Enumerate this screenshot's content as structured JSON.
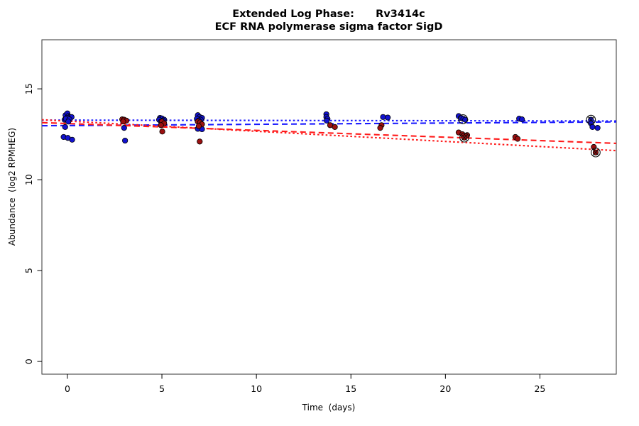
{
  "chart_data": {
    "type": "scatter",
    "title": "Extended Log Phase:      Rv3414c",
    "subtitle": "ECF RNA polymerase sigma factor SigD",
    "xlabel": "Time  (days)",
    "ylabel": "Abundance  (log2 RPMHEG)",
    "xlim": [
      -1.35,
      29.04
    ],
    "ylim": [
      -0.7,
      17.7
    ],
    "xticks": [
      0,
      5,
      10,
      15,
      20,
      25
    ],
    "yticks": [
      0,
      5,
      10,
      15
    ],
    "grid": false,
    "legend": "none",
    "point_colors": {
      "blue": "#1212cf",
      "red": "#9b1010"
    },
    "line_colors": {
      "blue": "#1a1aff",
      "red": "#ff1a1a"
    },
    "series": [
      {
        "name": "condition-blue",
        "color_key": "blue",
        "points": [
          [
            -0.15,
            13.3
          ],
          [
            -0.1,
            13.55
          ],
          [
            0,
            13.65
          ],
          [
            0.05,
            13.5
          ],
          [
            0.12,
            13.45
          ],
          [
            0.22,
            13.45
          ],
          [
            0.02,
            13.4
          ],
          [
            -0.08,
            13.35
          ],
          [
            0.1,
            13.32
          ],
          [
            0.05,
            13.2
          ],
          [
            -0.12,
            12.9
          ],
          [
            -0.2,
            12.35
          ],
          [
            0.02,
            12.3
          ],
          [
            0.25,
            12.2
          ],
          [
            3,
            12.85
          ],
          [
            3.05,
            12.15
          ],
          [
            4.9,
            13.4
          ],
          [
            5.0,
            13.37
          ],
          [
            5.12,
            13.3
          ],
          [
            4.85,
            13.3
          ],
          [
            5.05,
            13.25
          ],
          [
            4.95,
            13.2
          ],
          [
            6.9,
            13.55
          ],
          [
            7.0,
            13.45
          ],
          [
            7.12,
            13.4
          ],
          [
            6.85,
            13.35
          ],
          [
            7.05,
            13.3
          ],
          [
            6.95,
            13.25
          ],
          [
            6.9,
            12.8
          ],
          [
            7.12,
            12.78
          ],
          [
            13.7,
            13.6
          ],
          [
            13.7,
            13.45
          ],
          [
            13.76,
            13.35
          ],
          [
            13.72,
            13.25
          ],
          [
            16.7,
            13.45
          ],
          [
            16.95,
            13.42
          ],
          [
            20.7,
            13.5
          ],
          [
            20.82,
            13.4
          ],
          [
            20.95,
            13.35
          ],
          [
            21.05,
            13.3
          ],
          [
            23.9,
            13.36
          ],
          [
            24.05,
            13.32
          ],
          [
            27.7,
            13.3
          ],
          [
            27.7,
            13.1
          ],
          [
            27.78,
            12.9
          ],
          [
            28.05,
            12.85
          ]
        ]
      },
      {
        "name": "condition-red",
        "color_key": "red",
        "points": [
          [
            2.9,
            13.32
          ],
          [
            3.0,
            13.3
          ],
          [
            3.12,
            13.25
          ],
          [
            2.95,
            13.2
          ],
          [
            5.0,
            13.2
          ],
          [
            5.12,
            13.1
          ],
          [
            4.95,
            13.0
          ],
          [
            5.02,
            12.65
          ],
          [
            6.9,
            13.2
          ],
          [
            7.02,
            13.15
          ],
          [
            7.12,
            13.05
          ],
          [
            6.95,
            12.95
          ],
          [
            7.0,
            12.1
          ],
          [
            13.9,
            13.0
          ],
          [
            14.15,
            12.9
          ],
          [
            16.62,
            13.0
          ],
          [
            16.55,
            12.85
          ],
          [
            20.7,
            12.6
          ],
          [
            20.9,
            12.5
          ],
          [
            21.15,
            12.45
          ],
          [
            21.0,
            12.32
          ],
          [
            23.7,
            12.35
          ],
          [
            23.82,
            12.25
          ],
          [
            27.85,
            11.8
          ],
          [
            27.95,
            11.5
          ]
        ]
      }
    ],
    "trend_lines": [
      {
        "name": "blue-dotted-fit",
        "color_key": "blue",
        "style": "dotted",
        "x": [
          -1.35,
          29.04
        ],
        "y": [
          13.28,
          13.23
        ]
      },
      {
        "name": "blue-dashed-fit",
        "color_key": "blue",
        "style": "dashed",
        "x": [
          -1.35,
          29.04
        ],
        "y": [
          12.97,
          13.18
        ]
      },
      {
        "name": "red-dashed-fit",
        "color_key": "red",
        "style": "dashed",
        "x": [
          -1.35,
          29.04
        ],
        "y": [
          13.14,
          12.0
        ]
      },
      {
        "name": "red-dotted-fit",
        "color_key": "red",
        "style": "dotted",
        "x": [
          -1.35,
          29.04
        ],
        "y": [
          13.3,
          11.6
        ]
      }
    ],
    "highlighted_points": [
      {
        "x": 20.93,
        "y": 13.33,
        "style": "circle"
      },
      {
        "x": 21.0,
        "y": 12.32,
        "style": "circle-x"
      },
      {
        "x": 27.7,
        "y": 13.3,
        "style": "circle-x"
      },
      {
        "x": 27.95,
        "y": 11.5,
        "style": "circle-x"
      }
    ]
  }
}
